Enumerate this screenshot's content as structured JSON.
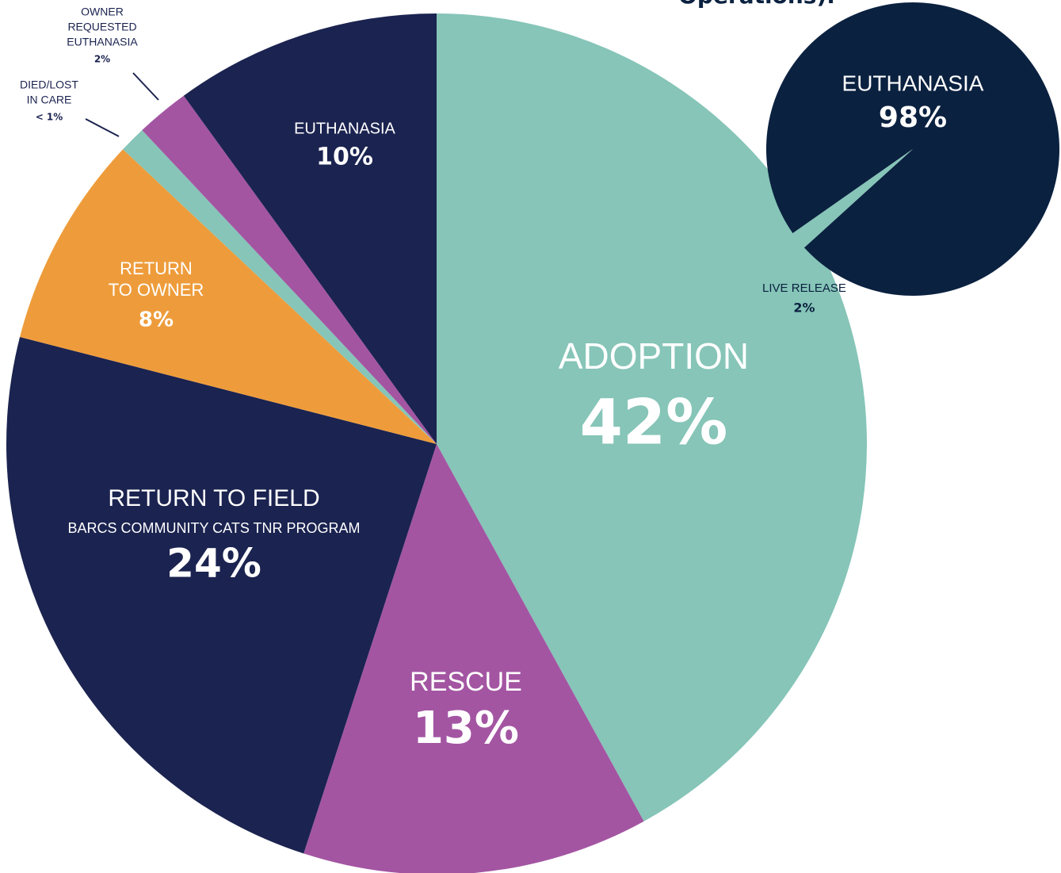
{
  "chart_data": [
    {
      "type": "pie",
      "categories": [
        "ADOPTION",
        "RESCUE",
        "RETURN TO FIELD",
        [
          "RETURN",
          "TO OWNER"
        ],
        [
          "DIED/LOST",
          "IN CARE"
        ],
        [
          "OWNER",
          "REQUESTED",
          "EUTHANASIA"
        ],
        "EUTHANASIA"
      ],
      "sublabels": {
        "2": "BARCS  COMMUNITY CATS TNR PROGRAM"
      },
      "values": [
        42,
        13,
        24,
        8,
        1,
        2,
        10
      ],
      "value_labels": [
        "42%",
        "13%",
        "24%",
        "8%",
        "< 1%",
        "2%",
        "10%"
      ],
      "colors": [
        "#86c5b8",
        "#a355a2",
        "#1b2350",
        "#ee9c3b",
        "#86c5b8",
        "#a355a2",
        "#1b2350"
      ]
    },
    {
      "type": "pie",
      "title": "Operations).",
      "categories": [
        "EUTHANASIA",
        "LIVE RELEASE"
      ],
      "values": [
        98,
        2
      ],
      "value_labels": [
        "98%",
        "2%"
      ],
      "colors": [
        "#0b2140",
        "#86c5b8"
      ]
    }
  ]
}
